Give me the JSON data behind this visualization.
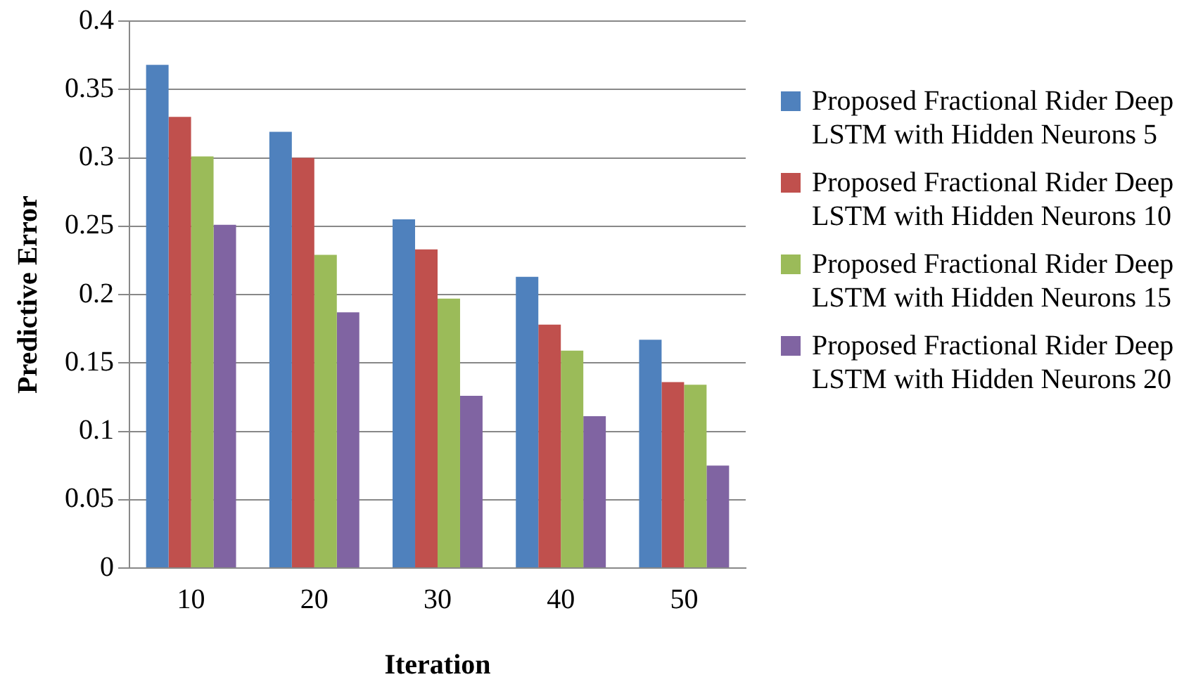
{
  "chart_data": {
    "type": "bar",
    "categories": [
      "10",
      "20",
      "30",
      "40",
      "50"
    ],
    "xlabel": "Iteration",
    "ylabel": "Predictive Error",
    "ylim": [
      0,
      0.4
    ],
    "yticks": [
      0,
      0.05,
      0.1,
      0.15,
      0.2,
      0.25,
      0.3,
      0.35,
      0.4
    ],
    "grid": "y",
    "legend": "right",
    "series": [
      {
        "name": "Proposed Fractional Rider Deep LSTM with Hidden Neurons 5",
        "color": "#4f81bd",
        "values": [
          0.368,
          0.319,
          0.255,
          0.213,
          0.167
        ]
      },
      {
        "name": "Proposed Fractional Rider Deep LSTM with Hidden Neurons 10",
        "color": "#c0504d",
        "values": [
          0.33,
          0.3,
          0.233,
          0.178,
          0.136
        ]
      },
      {
        "name": "Proposed Fractional Rider Deep LSTM with Hidden Neurons 15",
        "color": "#9bbb59",
        "values": [
          0.301,
          0.229,
          0.197,
          0.159,
          0.134
        ]
      },
      {
        "name": "Proposed Fractional Rider Deep LSTM with Hidden Neurons 20",
        "color": "#8064a2",
        "values": [
          0.251,
          0.187,
          0.126,
          0.111,
          0.075
        ]
      }
    ]
  }
}
